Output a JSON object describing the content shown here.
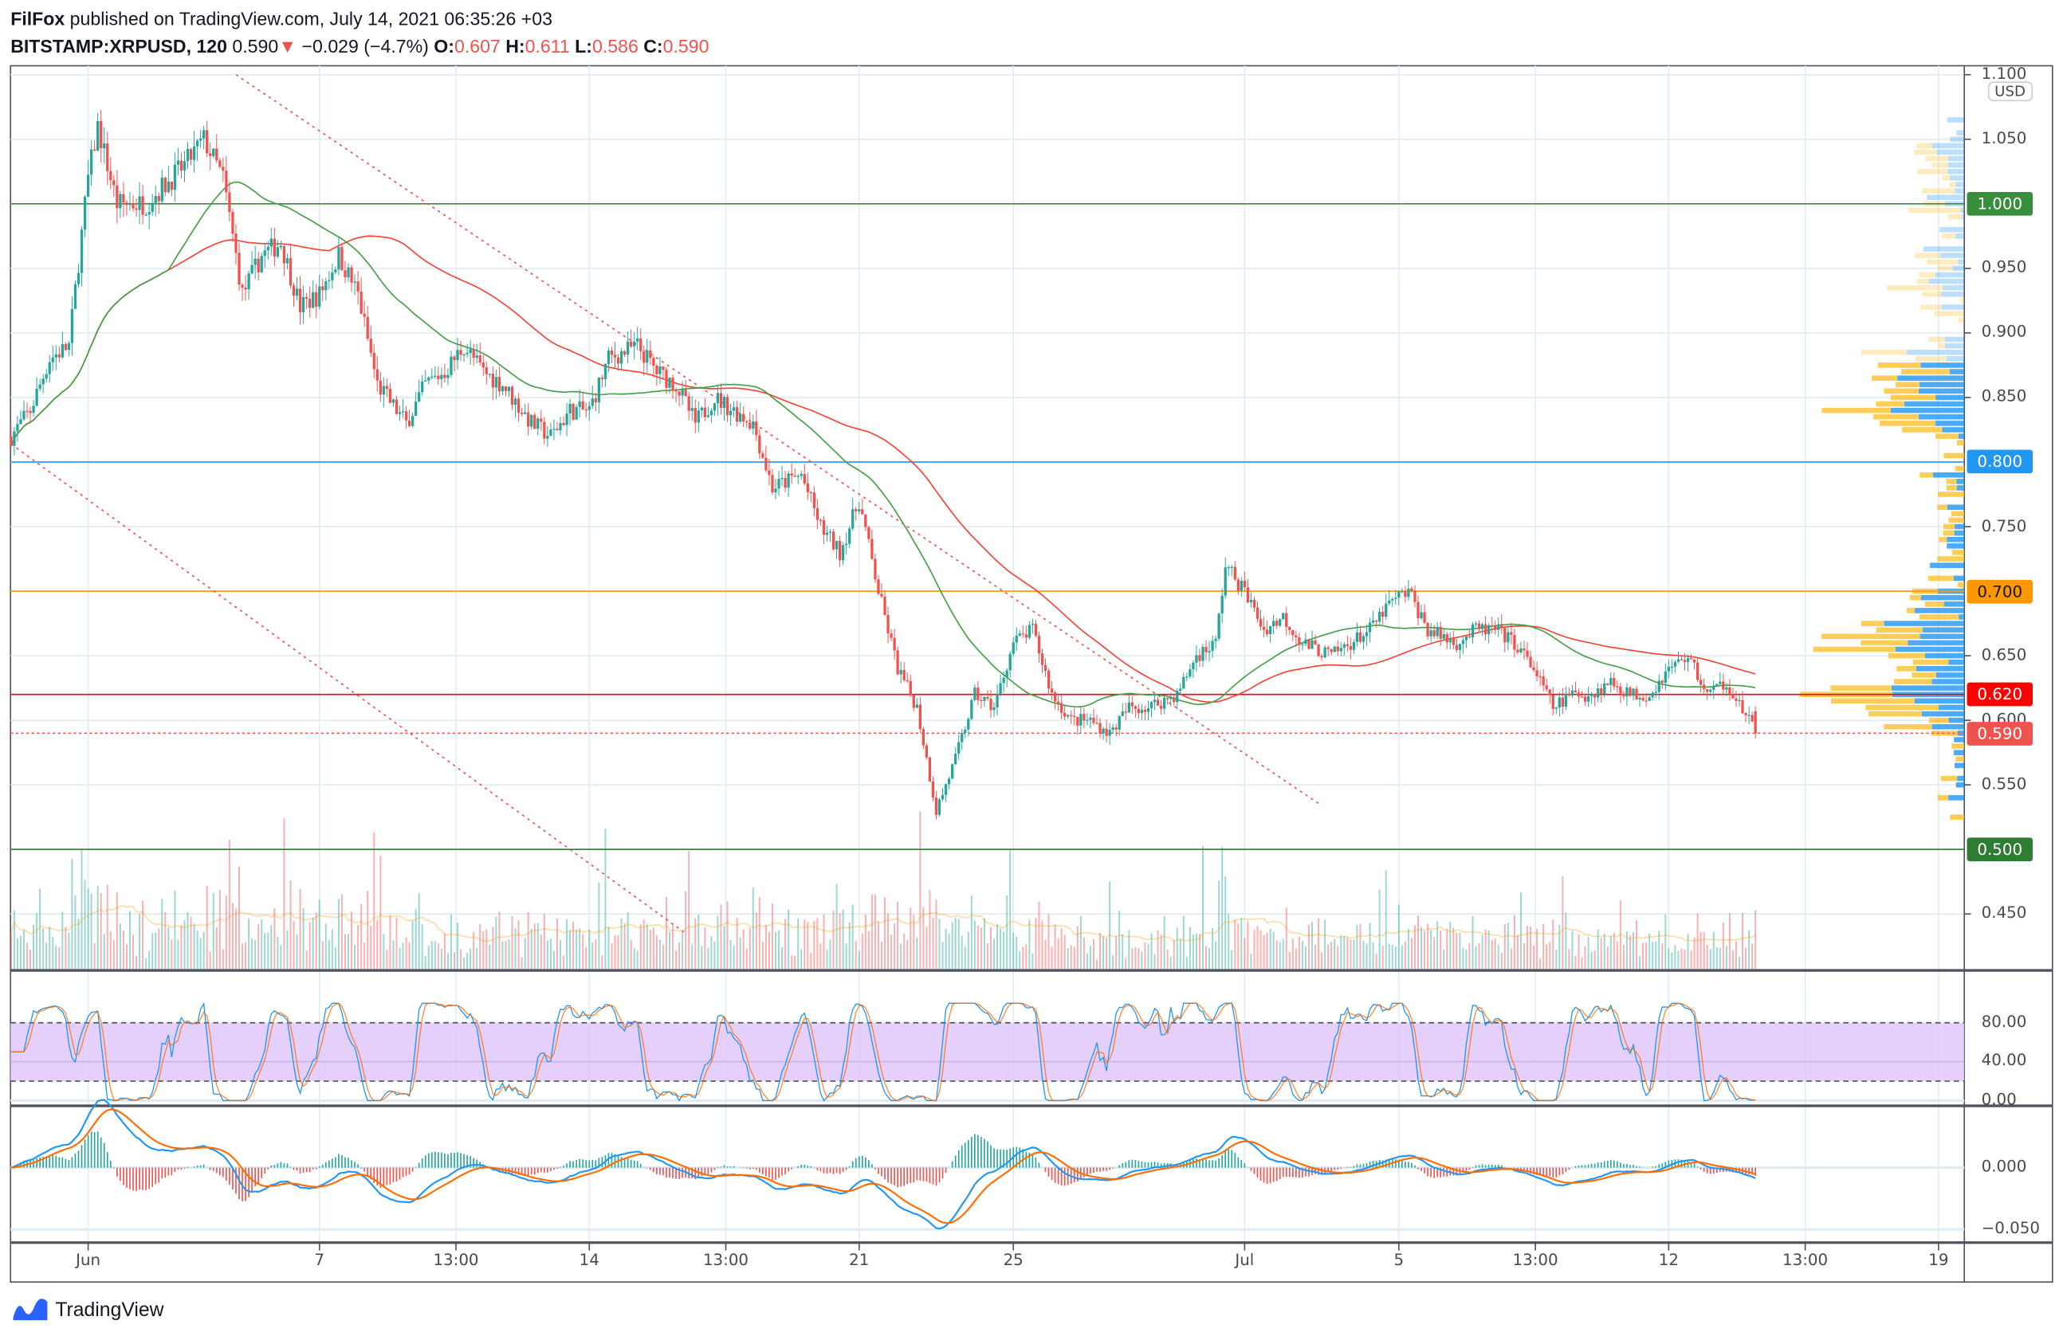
{
  "header": {
    "author": "FilFox",
    "published": "published on TradingView.com, July 14, 2021 06:35:26 +03",
    "symbol": "BITSTAMP:XRPUSD, 120",
    "last": "0.590",
    "change": "−0.029 (−4.7%)",
    "o_label": "O:",
    "o": "0.607",
    "h_label": "H:",
    "h": "0.611",
    "l_label": "L:",
    "l": "0.586",
    "c_label": "C:",
    "c": "0.590",
    "down_icon": "triangle-down-icon"
  },
  "currency": "USD",
  "colors": {
    "up": "#26a69a",
    "down": "#ef5350",
    "ma_fast": "#43a047",
    "ma_slow": "#f44336",
    "stoch_k": "#2196f3",
    "stoch_d": "#ff6d00",
    "macd": "#2196f3",
    "signal": "#ff6d00",
    "stoch_band": "#e1c8fb",
    "vp_up": "#2196f3",
    "vp_down": "#fbc02d"
  },
  "price_axis": {
    "labels": [
      "1.100",
      "1.050",
      "0.950",
      "0.900",
      "0.850",
      "0.750",
      "0.650",
      "0.600",
      "0.550",
      "0.450"
    ]
  },
  "levels": [
    {
      "price": "1.000",
      "color": "#388e3c"
    },
    {
      "price": "0.800",
      "color": "#2196f3"
    },
    {
      "price": "0.700",
      "color": "#ff9800",
      "text_color": "#131722"
    },
    {
      "price": "0.620",
      "color": "#ff0000"
    },
    {
      "price": "0.590",
      "color": "#ef5350",
      "dotted": true
    },
    {
      "price": "0.500",
      "color": "#2e7d32"
    }
  ],
  "trendlines": [
    {
      "from": [
        "2021-06-04T20:00",
        1.1
      ],
      "to": [
        "2021-07-03T00:00",
        0.534
      ]
    },
    {
      "from": [
        "2021-05-30T00:00",
        0.814
      ],
      "to": [
        "2021-06-16T12:00",
        0.435
      ]
    }
  ],
  "time_axis": [
    {
      "label": "Jun",
      "date": "2021-06-01T00:00"
    },
    {
      "label": "7",
      "date": "2021-06-07T00:00"
    },
    {
      "label": "13:00",
      "date": "2021-06-10T13:00"
    },
    {
      "label": "14",
      "date": "2021-06-14T00:00"
    },
    {
      "label": "13:00",
      "date": "2021-06-17T13:00"
    },
    {
      "label": "21",
      "date": "2021-06-21T00:00"
    },
    {
      "label": "25",
      "date": "2021-06-25T00:00"
    },
    {
      "label": "Jul",
      "date": "2021-07-01T00:00"
    },
    {
      "label": "5",
      "date": "2021-07-05T00:00"
    },
    {
      "label": "13:00",
      "date": "2021-07-08T13:00"
    },
    {
      "label": "12",
      "date": "2021-07-12T00:00"
    },
    {
      "label": "13:00",
      "date": "2021-07-15T13:00"
    },
    {
      "label": "19",
      "date": "2021-07-19T00:00"
    }
  ],
  "stoch_axis": [
    "80.00",
    "40.00",
    "0.00"
  ],
  "macd_axis": [
    "0.000",
    "−0.050"
  ],
  "chart_data": {
    "type": "candlestick",
    "interval_minutes": 120,
    "price_path": [
      [
        "2021-05-30T00:00",
        0.82
      ],
      [
        "2021-05-30T12:00",
        0.84
      ],
      [
        "2021-05-31T00:00",
        0.88
      ],
      [
        "2021-05-31T12:00",
        0.89
      ],
      [
        "2021-06-01T00:00",
        1.02
      ],
      [
        "2021-06-01T06:00",
        1.06
      ],
      [
        "2021-06-01T18:00",
        1.0
      ],
      [
        "2021-06-02T12:00",
        1.0
      ],
      [
        "2021-06-03T12:00",
        1.03
      ],
      [
        "2021-06-04T00:00",
        1.05
      ],
      [
        "2021-06-04T12:00",
        1.02
      ],
      [
        "2021-06-05T00:00",
        0.93
      ],
      [
        "2021-06-05T12:00",
        0.96
      ],
      [
        "2021-06-06T00:00",
        0.97
      ],
      [
        "2021-06-06T12:00",
        0.92
      ],
      [
        "2021-06-07T00:00",
        0.93
      ],
      [
        "2021-06-07T12:00",
        0.96
      ],
      [
        "2021-06-08T00:00",
        0.93
      ],
      [
        "2021-06-08T12:00",
        0.86
      ],
      [
        "2021-06-09T06:00",
        0.83
      ],
      [
        "2021-06-09T18:00",
        0.86
      ],
      [
        "2021-06-10T06:00",
        0.87
      ],
      [
        "2021-06-10T18:00",
        0.89
      ],
      [
        "2021-06-11T06:00",
        0.87
      ],
      [
        "2021-06-11T18:00",
        0.86
      ],
      [
        "2021-06-12T12:00",
        0.83
      ],
      [
        "2021-06-13T00:00",
        0.82
      ],
      [
        "2021-06-13T12:00",
        0.84
      ],
      [
        "2021-06-14T00:00",
        0.84
      ],
      [
        "2021-06-14T12:00",
        0.88
      ],
      [
        "2021-06-15T06:00",
        0.89
      ],
      [
        "2021-06-15T18:00",
        0.87
      ],
      [
        "2021-06-16T06:00",
        0.86
      ],
      [
        "2021-06-16T18:00",
        0.83
      ],
      [
        "2021-06-17T06:00",
        0.85
      ],
      [
        "2021-06-17T18:00",
        0.84
      ],
      [
        "2021-06-18T06:00",
        0.83
      ],
      [
        "2021-06-18T18:00",
        0.78
      ],
      [
        "2021-06-19T12:00",
        0.79
      ],
      [
        "2021-06-20T00:00",
        0.75
      ],
      [
        "2021-06-20T12:00",
        0.73
      ],
      [
        "2021-06-21T00:00",
        0.77
      ],
      [
        "2021-06-21T12:00",
        0.7
      ],
      [
        "2021-06-22T00:00",
        0.64
      ],
      [
        "2021-06-22T12:00",
        0.61
      ],
      [
        "2021-06-23T00:00",
        0.53
      ],
      [
        "2021-06-23T12:00",
        0.57
      ],
      [
        "2021-06-24T00:00",
        0.62
      ],
      [
        "2021-06-24T12:00",
        0.61
      ],
      [
        "2021-06-25T00:00",
        0.66
      ],
      [
        "2021-06-25T12:00",
        0.67
      ],
      [
        "2021-06-26T00:00",
        0.62
      ],
      [
        "2021-06-26T12:00",
        0.6
      ],
      [
        "2021-06-27T00:00",
        0.6
      ],
      [
        "2021-06-27T12:00",
        0.59
      ],
      [
        "2021-06-28T00:00",
        0.61
      ],
      [
        "2021-06-28T12:00",
        0.61
      ],
      [
        "2021-06-29T06:00",
        0.62
      ],
      [
        "2021-06-29T18:00",
        0.65
      ],
      [
        "2021-06-30T06:00",
        0.66
      ],
      [
        "2021-06-30T12:00",
        0.72
      ],
      [
        "2021-07-01T00:00",
        0.7
      ],
      [
        "2021-07-01T12:00",
        0.67
      ],
      [
        "2021-07-02T00:00",
        0.68
      ],
      [
        "2021-07-02T12:00",
        0.66
      ],
      [
        "2021-07-03T06:00",
        0.65
      ],
      [
        "2021-07-03T18:00",
        0.66
      ],
      [
        "2021-07-04T06:00",
        0.67
      ],
      [
        "2021-07-04T18:00",
        0.69
      ],
      [
        "2021-07-05T06:00",
        0.7
      ],
      [
        "2021-07-05T18:00",
        0.67
      ],
      [
        "2021-07-06T12:00",
        0.66
      ],
      [
        "2021-07-07T00:00",
        0.67
      ],
      [
        "2021-07-07T12:00",
        0.67
      ],
      [
        "2021-07-08T00:00",
        0.66
      ],
      [
        "2021-07-08T12:00",
        0.64
      ],
      [
        "2021-07-09T00:00",
        0.61
      ],
      [
        "2021-07-09T12:00",
        0.62
      ],
      [
        "2021-07-10T00:00",
        0.62
      ],
      [
        "2021-07-10T12:00",
        0.63
      ],
      [
        "2021-07-11T00:00",
        0.62
      ],
      [
        "2021-07-11T12:00",
        0.62
      ],
      [
        "2021-07-12T00:00",
        0.64
      ],
      [
        "2021-07-12T12:00",
        0.65
      ],
      [
        "2021-07-13T00:00",
        0.62
      ],
      [
        "2021-07-13T12:00",
        0.63
      ],
      [
        "2021-07-14T06:00",
        0.59
      ]
    ],
    "ylim": [
      0.42,
      1.1
    ],
    "stoch_ylim": [
      0,
      100
    ],
    "macd_ylim": [
      -0.055,
      0.045
    ]
  },
  "footer": {
    "logo": "TradingView"
  }
}
